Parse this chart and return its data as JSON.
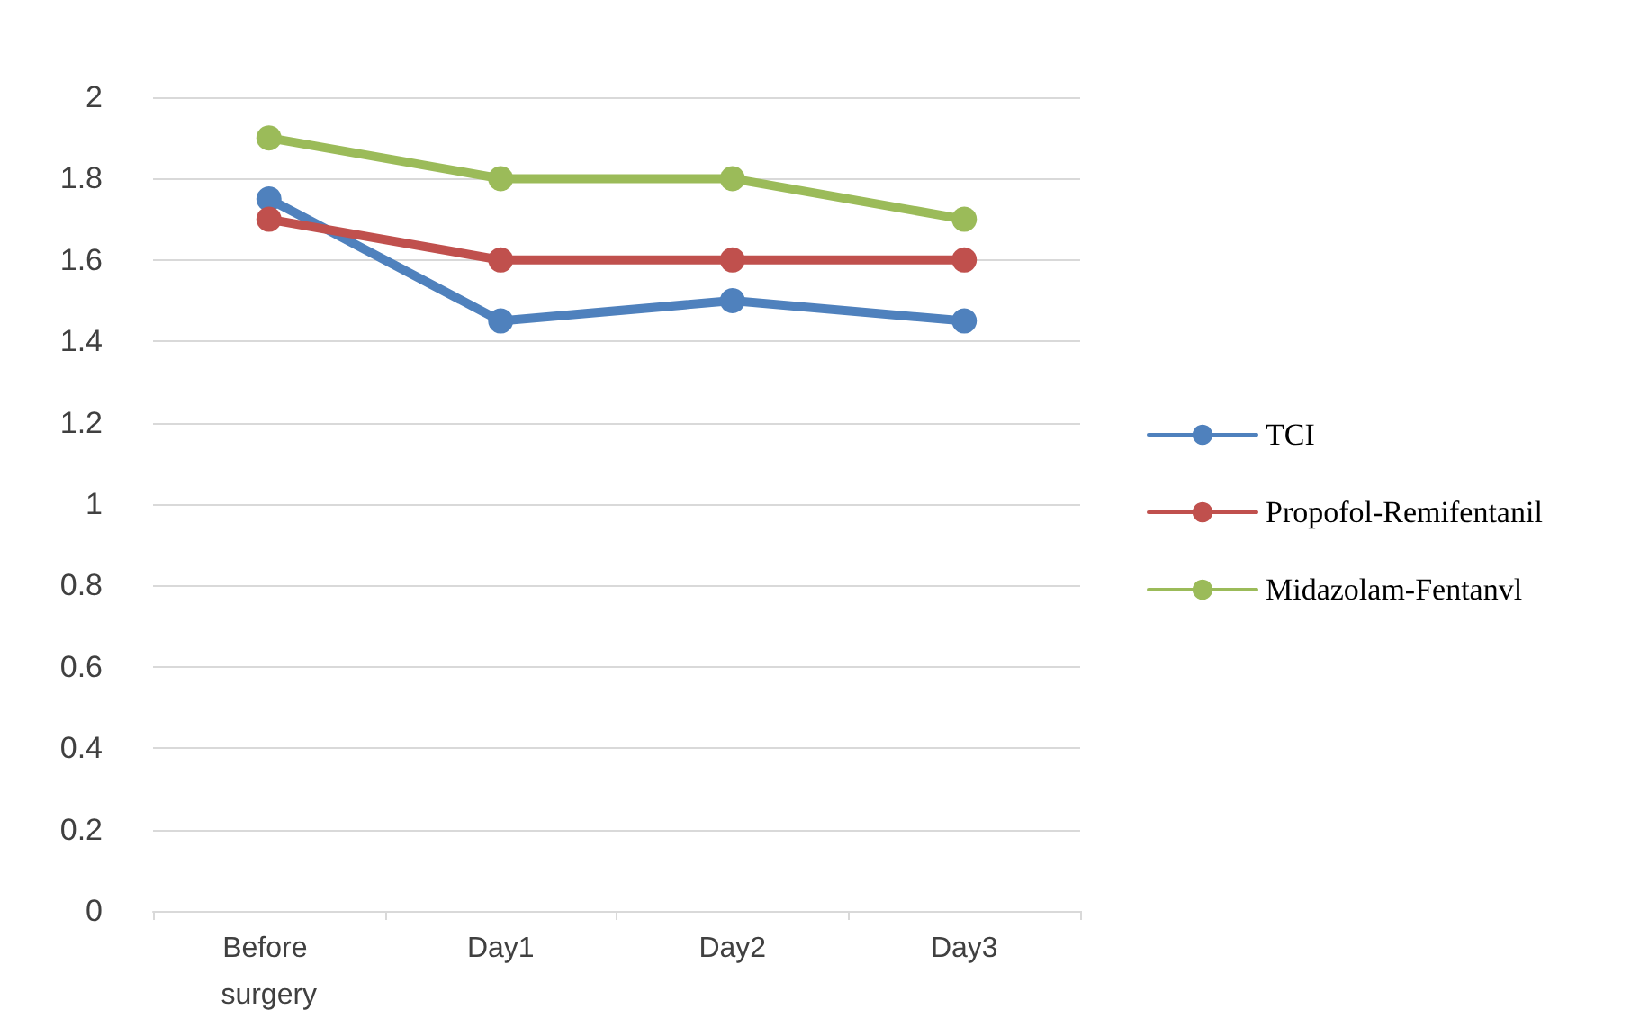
{
  "chart_data": {
    "type": "line",
    "categories": [
      "Before surgery",
      "Day1",
      "Day2",
      "Day3"
    ],
    "series": [
      {
        "name": "TCI",
        "color": "#4f81bd",
        "values": [
          1.75,
          1.45,
          1.5,
          1.45
        ]
      },
      {
        "name": "Propofol-Remifentanil",
        "color": "#c0504d",
        "values": [
          1.7,
          1.6,
          1.6,
          1.6
        ]
      },
      {
        "name": "Midazolam-Fentanvl",
        "color": "#9bbb59",
        "values": [
          1.9,
          1.8,
          1.8,
          1.7
        ]
      }
    ],
    "ylim": [
      0,
      2
    ],
    "yticks": [
      0,
      0.2,
      0.4,
      0.6,
      0.8,
      1,
      1.2,
      1.4,
      1.6,
      1.8,
      2
    ],
    "grid": "y",
    "legend": "right",
    "marker": "circle",
    "line_style": "solid"
  }
}
